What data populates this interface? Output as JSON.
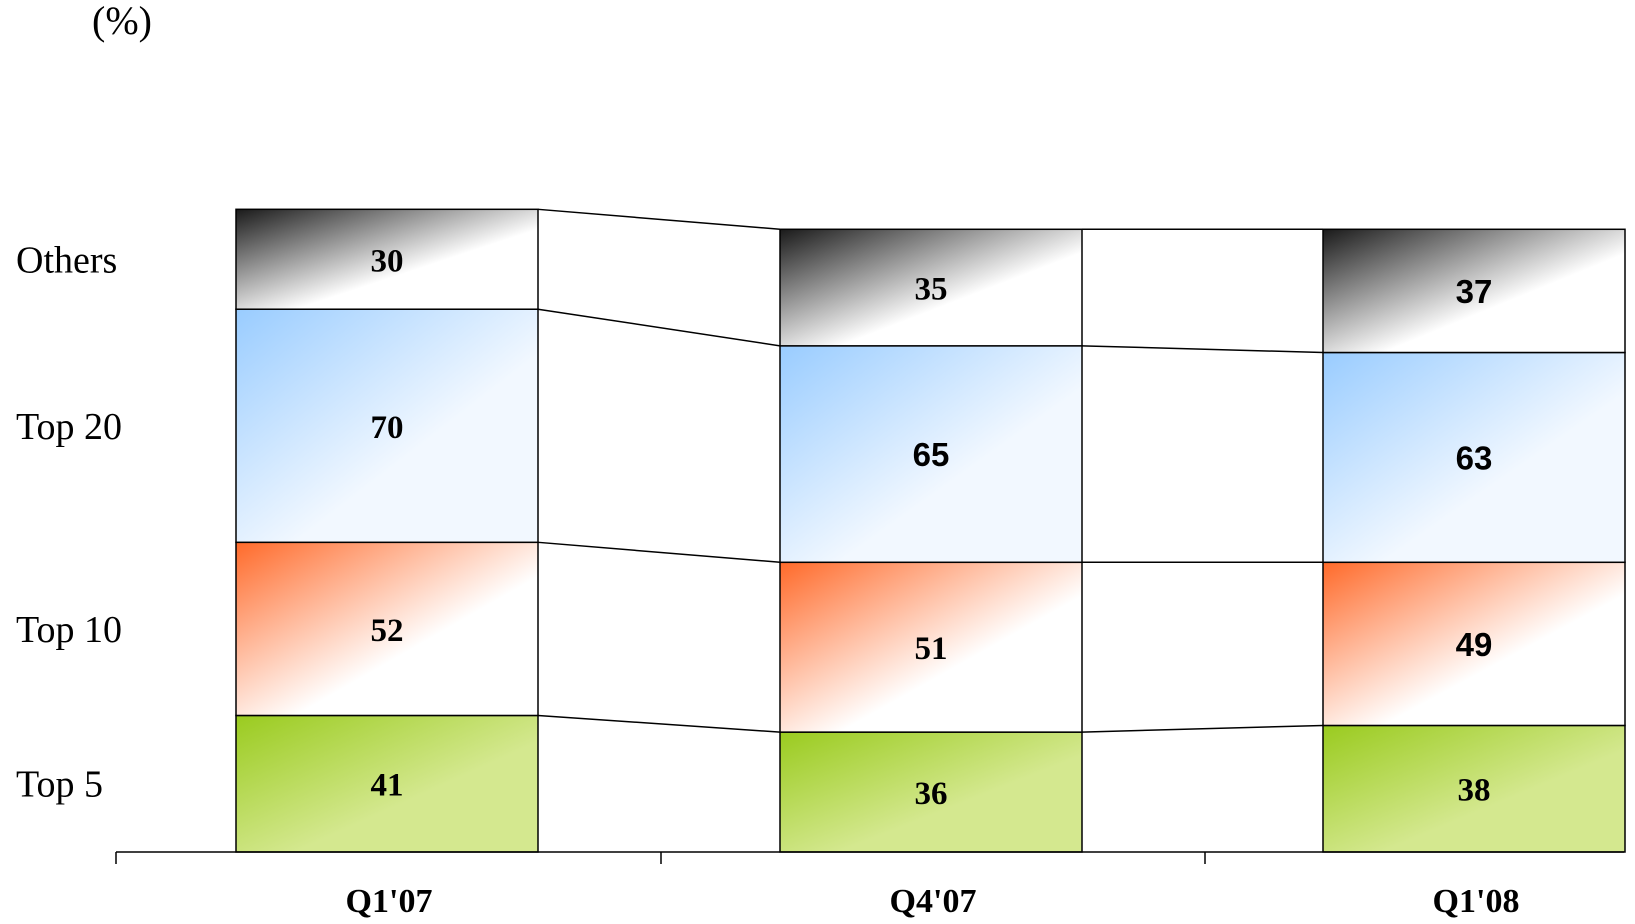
{
  "chart_data": {
    "type": "bar",
    "stacked": false,
    "unit": "(%)",
    "categories": [
      "Q1'07",
      "Q4'07",
      "Q1'08"
    ],
    "series": [
      {
        "name": "Top 5",
        "values": [
          41,
          36,
          38
        ],
        "color_top": "#9acb1f",
        "color_bottom": "#d4e88f"
      },
      {
        "name": "Top 10",
        "values": [
          52,
          51,
          49
        ],
        "color_top": "#ff6a2a",
        "color_bottom": "#ffffff"
      },
      {
        "name": "Top 20",
        "values": [
          70,
          65,
          63
        ],
        "color_top": "#99ccff",
        "color_bottom": "#f2f8ff"
      },
      {
        "name": "Others",
        "values": [
          30,
          35,
          37
        ],
        "color_top": "#1a1a1a",
        "color_bottom": "#ffffff"
      }
    ],
    "grid": false,
    "legend": "left"
  }
}
